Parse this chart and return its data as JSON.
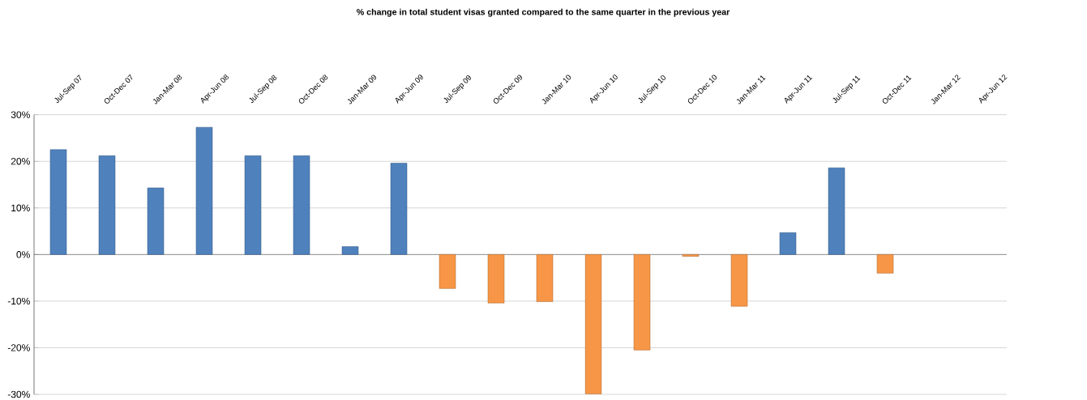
{
  "chart_data": {
    "type": "bar",
    "title": "% change in total student visas granted compared to the same quarter in the previous year",
    "categories": [
      "Jul-Sep 07",
      "Oct-Dec 07",
      "Jan-Mar 08",
      "Apr-Jun 08",
      "Jul-Sep 08",
      "Oct-Dec 08",
      "Jan-Mar 09",
      "Apr-Jun 09",
      "Jul-Sep 09",
      "Oct-Dec 09",
      "Jan-Mar 10",
      "Apr-Jun 10",
      "Jul-Sep 10",
      "Oct-Dec 10",
      "Jan-Mar 11",
      "Apr-Jun 11",
      "Jul-Sep 11",
      "Oct-Dec 11",
      "Jan-Mar 12",
      "Apr-Jun 12"
    ],
    "values": [
      22.5,
      21.2,
      14.3,
      27.3,
      21.2,
      21.2,
      1.7,
      19.6,
      -7.3,
      -10.4,
      -10.1,
      -29.9,
      -20.5,
      -0.4,
      -11.1,
      4.7,
      18.6,
      -4.0,
      null,
      null
    ],
    "colors": [
      "#4f81bd",
      "#4f81bd",
      "#4f81bd",
      "#4f81bd",
      "#4f81bd",
      "#4f81bd",
      "#4f81bd",
      "#4f81bd",
      "#f79646",
      "#f79646",
      "#f79646",
      "#f79646",
      "#f79646",
      "#f79646",
      "#f79646",
      "#4f81bd",
      "#4f81bd",
      "#f79646",
      "#4f81bd",
      "#4f81bd"
    ],
    "ylim": [
      -30,
      30
    ],
    "yticks": [
      {
        "value": -30,
        "label": "-30%"
      },
      {
        "value": -20,
        "label": "-20%"
      },
      {
        "value": -10,
        "label": "-10%"
      },
      {
        "value": 0,
        "label": "0%"
      },
      {
        "value": 10,
        "label": "10%"
      },
      {
        "value": 20,
        "label": "20%"
      },
      {
        "value": 30,
        "label": "30%"
      }
    ],
    "grid": "y"
  }
}
